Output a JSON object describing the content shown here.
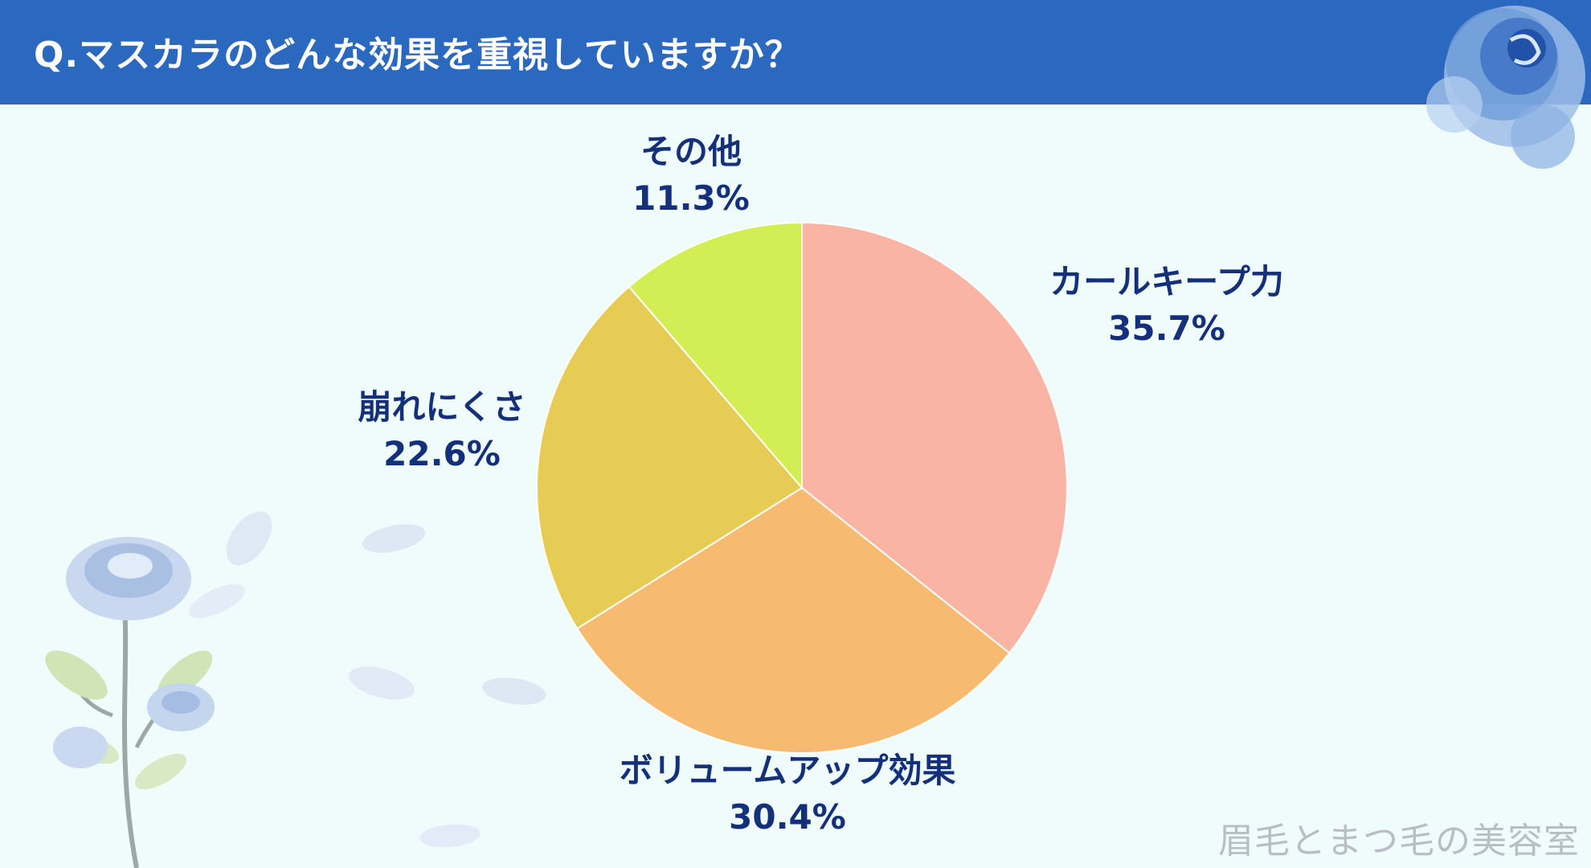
{
  "title": "Q.マスカラのどんな効果を重視していますか？",
  "watermark": "眉毛とまつ毛の美容室",
  "colors": {
    "header": "#2b68bf",
    "background": "#effcfb",
    "label_text": "#14307a"
  },
  "chart_data": {
    "type": "pie",
    "title": "Q.マスカラのどんな効果を重視していますか？",
    "slices": [
      {
        "label": "カールキープ力",
        "value": 35.7,
        "display": "35.7%",
        "color": "#f9b4a3"
      },
      {
        "label": "ボリュームアップ効果",
        "value": 30.4,
        "display": "30.4%",
        "color": "#f6ba70"
      },
      {
        "label": "崩れにくさ",
        "value": 22.6,
        "display": "22.6%",
        "color": "#e6cb55"
      },
      {
        "label": "その他",
        "value": 11.3,
        "display": "11.3%",
        "color": "#d3ed55"
      }
    ],
    "start": "12 o'clock",
    "direction": "clockwise",
    "legend": "none (labels beside slices)"
  }
}
